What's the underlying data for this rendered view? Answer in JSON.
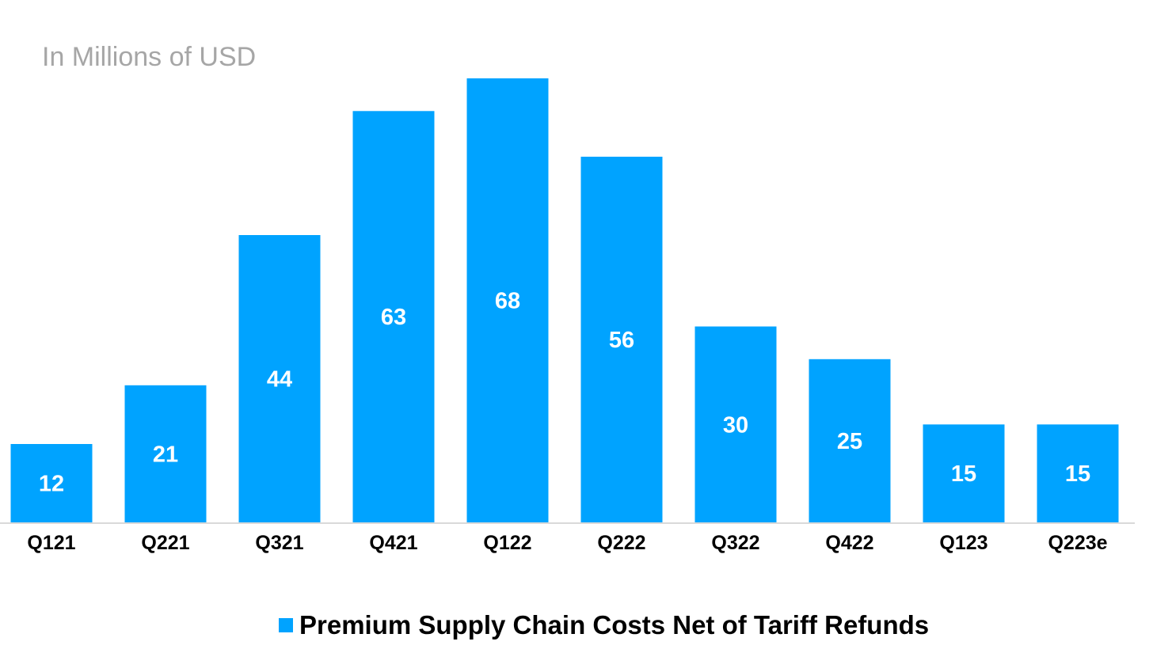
{
  "chart_data": {
    "type": "bar",
    "title": "",
    "units_label": "In Millions of USD",
    "xlabel": "",
    "ylabel": "",
    "categories": [
      "Q121",
      "Q221",
      "Q321",
      "Q421",
      "Q122",
      "Q222",
      "Q322",
      "Q422",
      "Q123",
      "Q223e"
    ],
    "series": [
      {
        "name": "Premium Supply Chain Costs Net of Tariff Refunds",
        "values": [
          12,
          21,
          44,
          63,
          68,
          56,
          30,
          25,
          15,
          15
        ],
        "color": "#00a3ff"
      }
    ],
    "ylim": [
      0,
      68
    ],
    "grid": false,
    "legend": "bottom-center",
    "data_labels": "inside-center",
    "axis_color": "#d9d9d9"
  }
}
